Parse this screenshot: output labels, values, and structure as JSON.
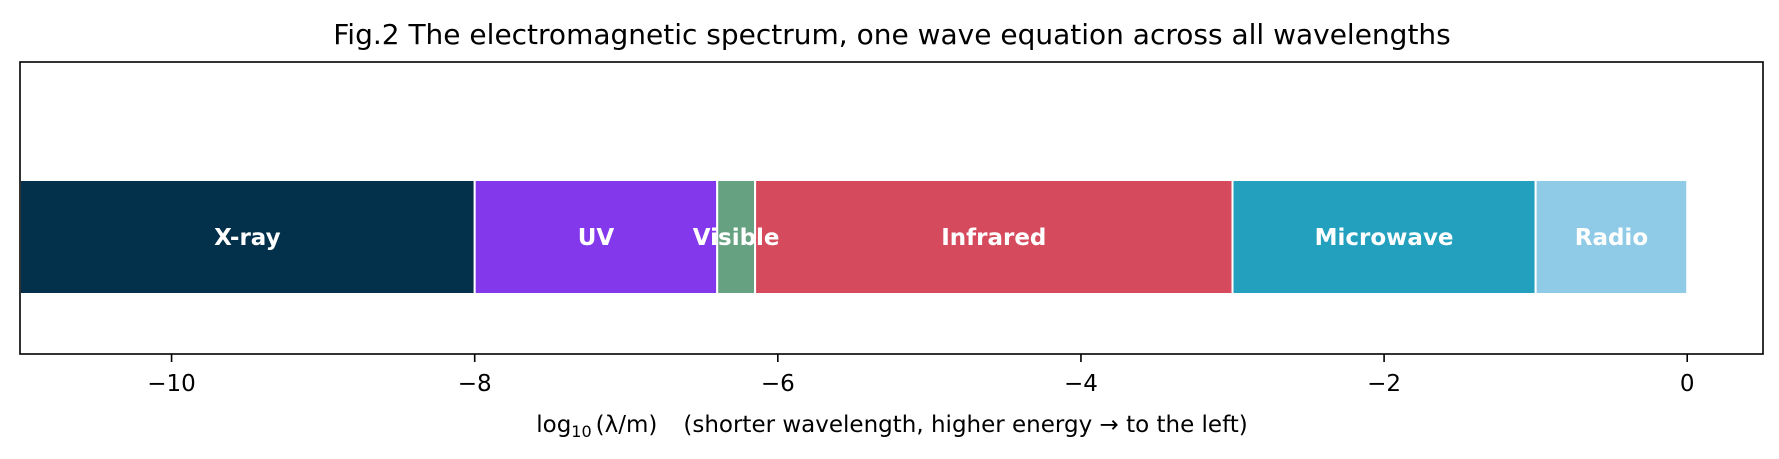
{
  "chart_data": {
    "type": "bar",
    "orientation": "horizontal-span",
    "title": "Fig.2 The electromagnetic spectrum, one wave equation across all wavelengths",
    "xlabel": {
      "prefix": "log",
      "subscript": "10",
      "quantity": "(λ/m)",
      "note": "(shorter wavelength, higher energy → to the left)"
    },
    "xlim": [
      -11,
      0.5
    ],
    "xticks": [
      {
        "value": -10,
        "label": "−10"
      },
      {
        "value": -8,
        "label": "−8"
      },
      {
        "value": -6,
        "label": "−6"
      },
      {
        "value": -4,
        "label": "−4"
      },
      {
        "value": -2,
        "label": "−2"
      },
      {
        "value": 0,
        "label": "0"
      }
    ],
    "grid": false,
    "bands": [
      {
        "label": "X-ray",
        "start": -11,
        "end": -8,
        "color": "#03304a"
      },
      {
        "label": "UV",
        "start": -8,
        "end": -6.4,
        "color": "#8338ec"
      },
      {
        "label": "Visible",
        "start": -6.4,
        "end": -6.15,
        "color": "#66a182"
      },
      {
        "label": "Infrared",
        "start": -6.15,
        "end": -3,
        "color": "#d64a5d"
      },
      {
        "label": "Microwave",
        "start": -3,
        "end": -1,
        "color": "#22a0be"
      },
      {
        "label": "Radio",
        "start": -1,
        "end": 0,
        "color": "#8fcae6"
      }
    ]
  }
}
